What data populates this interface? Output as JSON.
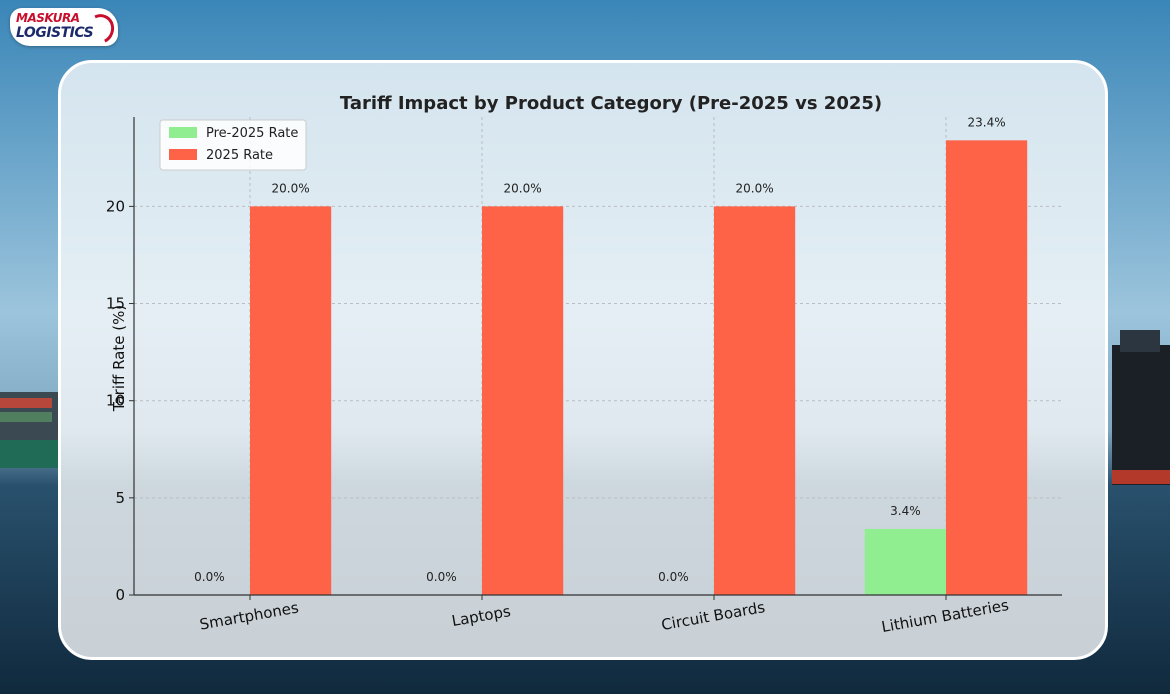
{
  "brand": {
    "line1": "MASKURA",
    "line2": "LOGISTICS",
    "color_red": "#c8102e",
    "color_navy": "#1b2a6b"
  },
  "chart_data": {
    "type": "bar",
    "title": "Tariff Impact by Product Category (Pre-2025 vs 2025)",
    "xlabel": "",
    "ylabel": "Tariff Rate (%)",
    "categories": [
      "Smartphones",
      "Laptops",
      "Circuit Boards",
      "Lithium Batteries"
    ],
    "series": [
      {
        "name": "Pre-2025 Rate",
        "values": [
          0.0,
          0.0,
          0.0,
          3.4
        ],
        "color": "#90ee90"
      },
      {
        "name": "2025 Rate",
        "values": [
          20.0,
          20.0,
          20.0,
          23.4
        ],
        "color": "#ff6347"
      }
    ],
    "value_labels": [
      [
        "0.0%",
        "0.0%",
        "0.0%",
        "3.4%"
      ],
      [
        "20.0%",
        "20.0%",
        "20.0%",
        "23.4%"
      ]
    ],
    "yticks": [
      0,
      5,
      10,
      15,
      20
    ],
    "ylim": [
      0,
      24.6
    ],
    "grid": true,
    "legend_position": "top-left",
    "category_label_rotation": -10
  }
}
